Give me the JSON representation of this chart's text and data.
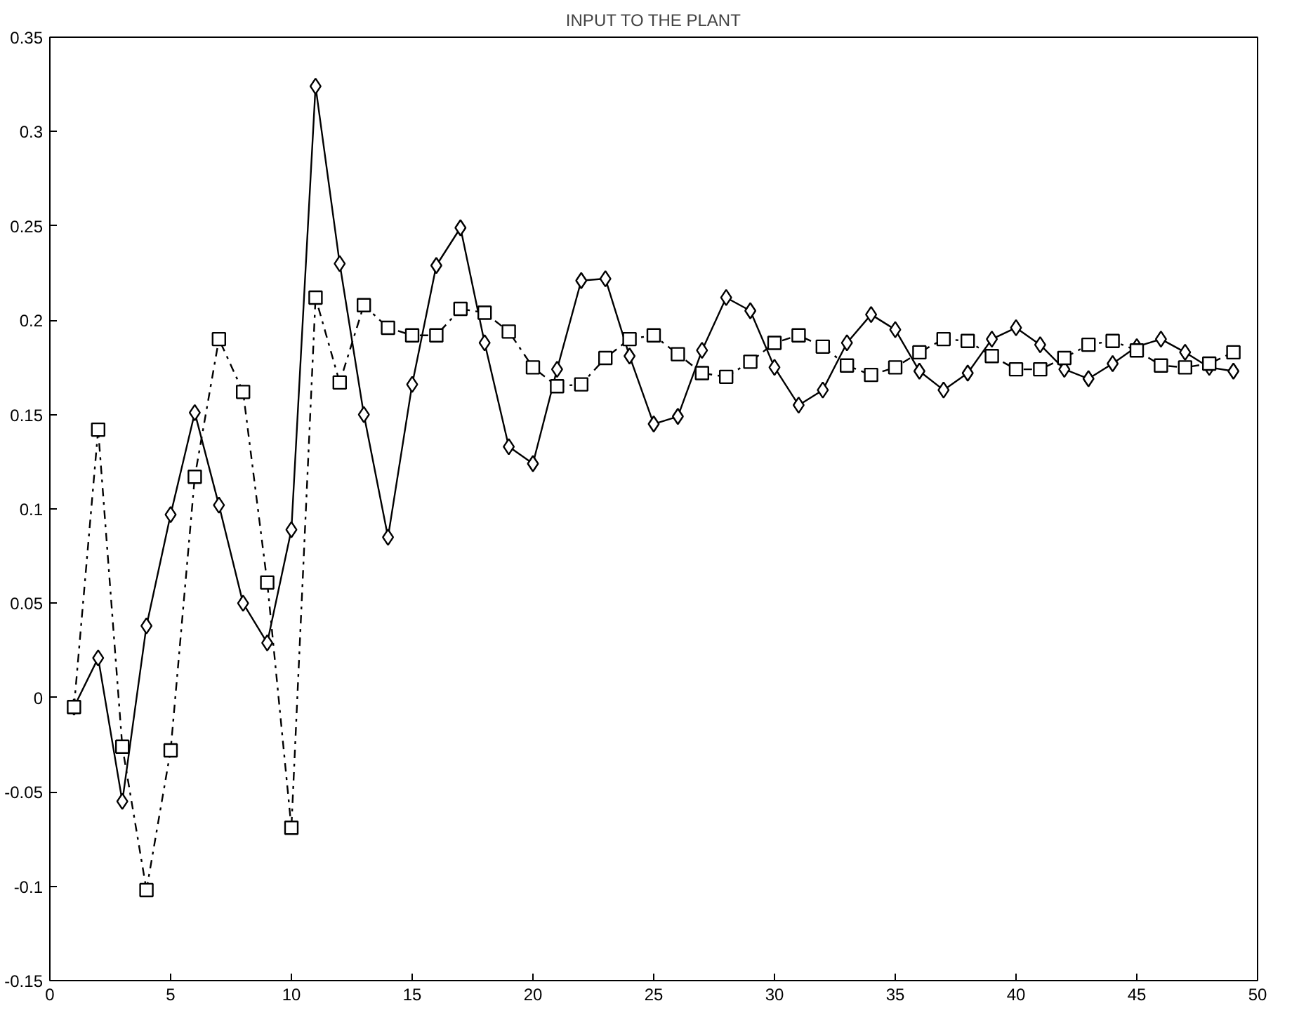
{
  "chart_data": {
    "type": "line",
    "title": "INPUT TO THE PLANT",
    "x": [
      1,
      2,
      3,
      4,
      5,
      6,
      7,
      8,
      9,
      10,
      11,
      12,
      13,
      14,
      15,
      16,
      17,
      18,
      19,
      20,
      21,
      22,
      23,
      24,
      25,
      26,
      27,
      28,
      29,
      30,
      31,
      32,
      33,
      34,
      35,
      36,
      37,
      38,
      39,
      40,
      41,
      42,
      43,
      44,
      45,
      46,
      47,
      48,
      49
    ],
    "series": [
      {
        "color": "#000000",
        "marker": "diamond",
        "line_style": "solid",
        "values": [
          -0.005,
          0.021,
          -0.055,
          0.038,
          0.097,
          0.151,
          0.102,
          0.05,
          0.029,
          0.089,
          0.324,
          0.23,
          0.15,
          0.085,
          0.166,
          0.229,
          0.249,
          0.188,
          0.133,
          0.124,
          0.174,
          0.221,
          0.222,
          0.181,
          0.145,
          0.149,
          0.184,
          0.212,
          0.205,
          0.175,
          0.155,
          0.163,
          0.188,
          0.203,
          0.195,
          0.173,
          0.163,
          0.172,
          0.19,
          0.196,
          0.187,
          0.174,
          0.169,
          0.177,
          0.186,
          0.19,
          0.183,
          0.175,
          0.173
        ]
      },
      {
        "color": "#000000",
        "marker": "square",
        "line_style": "dashdot",
        "values": [
          -0.005,
          0.142,
          -0.026,
          -0.102,
          -0.028,
          0.117,
          0.19,
          0.162,
          0.061,
          -0.069,
          0.212,
          0.167,
          0.208,
          0.196,
          0.192,
          0.192,
          0.206,
          0.204,
          0.194,
          0.175,
          0.165,
          0.166,
          0.18,
          0.19,
          0.192,
          0.182,
          0.172,
          0.17,
          0.178,
          0.188,
          0.192,
          0.186,
          0.176,
          0.171,
          0.175,
          0.183,
          0.19,
          0.189,
          0.181,
          0.174,
          0.174,
          0.18,
          0.187,
          0.189,
          0.184,
          0.176,
          0.175,
          0.177,
          0.183
        ]
      }
    ],
    "xlim": [
      0,
      50
    ],
    "xticks": [
      0,
      5,
      10,
      15,
      20,
      25,
      30,
      35,
      40,
      45,
      50
    ],
    "ylim": [
      -0.15,
      0.35
    ],
    "yticks": [
      -0.15,
      -0.1,
      -0.05,
      0,
      0.05,
      0.1,
      0.15,
      0.2,
      0.25,
      0.3,
      0.35
    ]
  }
}
